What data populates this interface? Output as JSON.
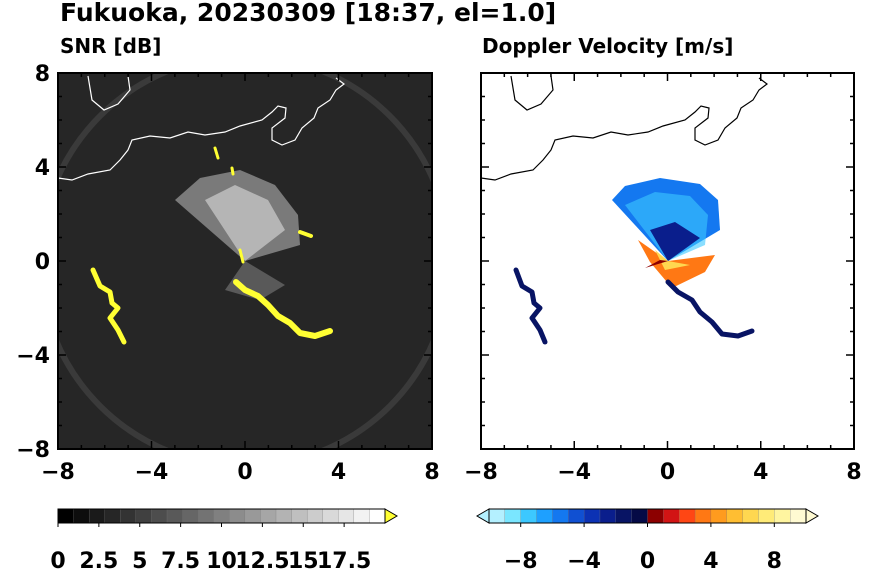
{
  "title": "Fukuoka, 20230309 [18:37, el=1.0]",
  "panels": {
    "snr": {
      "title": "SNR [dB]"
    },
    "doppler": {
      "title": "Doppler Velocity [m/s]"
    }
  },
  "chart_data": [
    {
      "type": "heatmap",
      "title": "SNR [dB]",
      "xlim": [
        -8,
        8
      ],
      "ylim": [
        -8,
        8
      ],
      "x_ticks": [
        "−8",
        "−4",
        "0",
        "4",
        "8"
      ],
      "y_ticks": [
        "8",
        "4",
        "0",
        "−4",
        "−8"
      ],
      "colorbar": {
        "ticks": [
          "0",
          "2.5",
          "5",
          "7.5",
          "10",
          "12.5",
          "15",
          "17.5"
        ],
        "range": [
          0,
          20
        ],
        "colors": [
          "#000000",
          "#0d0d0d",
          "#1a1a1a",
          "#262626",
          "#333333",
          "#404040",
          "#4d4d4d",
          "#595959",
          "#666666",
          "#737373",
          "#808080",
          "#8c8c8c",
          "#999999",
          "#a6a6a6",
          "#b3b3b3",
          "#bfbfbf",
          "#cccccc",
          "#d9d9d9",
          "#e6e6e6",
          "#f2f2f2",
          "#ffffff"
        ],
        "extend": "max",
        "over_color": "#ffff33"
      },
      "background_color": "#262626",
      "echo_color": "#ffff33"
    },
    {
      "type": "heatmap",
      "title": "Doppler Velocity [m/s]",
      "xlim": [
        -8,
        8
      ],
      "ylim": [
        -8,
        8
      ],
      "x_ticks": [
        "−8",
        "−4",
        "0",
        "4",
        "8"
      ],
      "y_ticks": [],
      "colorbar": {
        "ticks": [
          "−8",
          "−4",
          "0",
          "4",
          "8"
        ],
        "range": [
          -10,
          10
        ],
        "colors": [
          "#b4f0ff",
          "#7ae6ff",
          "#3cc8ff",
          "#1ea0ff",
          "#1478f0",
          "#1050d2",
          "#0c32b4",
          "#0a1e8c",
          "#081464",
          "#050a46",
          "#8c0000",
          "#d21414",
          "#ff4614",
          "#ff7814",
          "#ff9b1e",
          "#ffbe32",
          "#ffd750",
          "#ffeb78",
          "#fff5a0",
          "#fffad2"
        ],
        "extend": "both"
      }
    }
  ]
}
